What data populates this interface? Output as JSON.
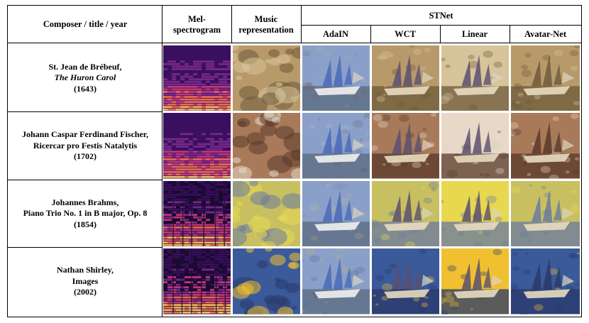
{
  "header": {
    "composer": "Composer / title / year",
    "mel": "Mel-\nspectrogram",
    "music": "Music\nrepresentation",
    "stnet": "STNet",
    "methods": [
      "AdaIN",
      "WCT",
      "Linear",
      "Avatar-Net"
    ]
  },
  "rows": [
    {
      "name": "St. Jean de Brébeuf,",
      "title": "The Huron Carol",
      "year": "(1643)",
      "title_italic": true,
      "palette": {
        "a": "#b89a6a",
        "b": "#6e5a3a",
        "c": "#d8c49a"
      }
    },
    {
      "name": "Johann Caspar Ferdinand Fischer,",
      "title": "Ricercar pro Festis Natalytis",
      "year": "(1702)",
      "title_italic": false,
      "palette": {
        "a": "#a87a5a",
        "b": "#5a3a2a",
        "c": "#e8d8c8"
      }
    },
    {
      "name": "Johannes Brahms,",
      "title": "Piano Trio No. 1 in B major, Op. 8",
      "year": "(1854)",
      "title_italic": false,
      "palette": {
        "a": "#c8c060",
        "b": "#6a7aa0",
        "c": "#e8d850"
      }
    },
    {
      "name": "Nathan Shirley,",
      "title": "Images",
      "year": "(2002)",
      "title_italic": false,
      "palette": {
        "a": "#3a5a9a",
        "b": "#2a3a6a",
        "c": "#f0c030"
      }
    }
  ]
}
